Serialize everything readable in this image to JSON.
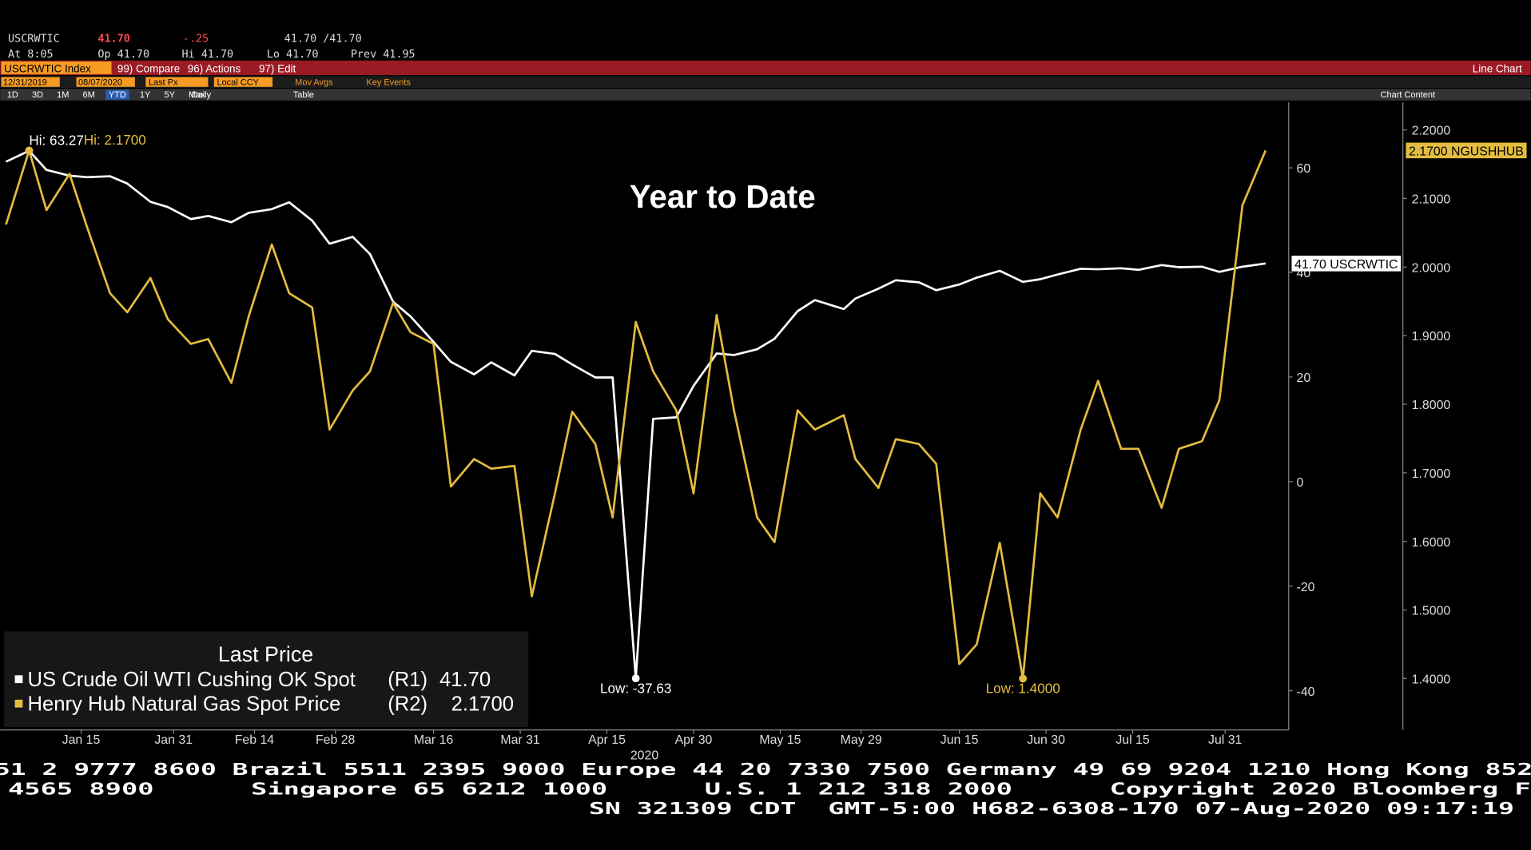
{
  "quote": {
    "ticker": "USCRWTIC",
    "last": "41.70",
    "change": "-.25",
    "bid_ask": "41.70 /41.70",
    "time": "At 8:05",
    "open": "Op 41.70",
    "high": "Hi 41.70",
    "low": "Lo 41.70",
    "prev": "Prev 41.95"
  },
  "toolbar": {
    "security": "USCRWTIC Index",
    "compare": "99) Compare",
    "actions": "96) Actions",
    "edit": "97) Edit",
    "view": "Line Chart",
    "start_date": "12/31/2019",
    "end_date": "08/07/2020",
    "field": "Last Px",
    "currency": "Local CCY",
    "mov_avgs": "Mov Avgs",
    "key_events": "Key Events",
    "ranges": [
      "1D",
      "3D",
      "1M",
      "6M",
      "YTD",
      "1Y",
      "5Y",
      "Max"
    ],
    "frequency": "Daily",
    "table": "Table",
    "chart_content": "Chart Content"
  },
  "chart_data": {
    "type": "line",
    "title": "Year to Date",
    "xlabel": "2020",
    "legend_title": "Last Price",
    "x": [
      "2020-01-02",
      "2020-01-06",
      "2020-01-09",
      "2020-01-13",
      "2020-01-16",
      "2020-01-20",
      "2020-01-23",
      "2020-01-27",
      "2020-01-30",
      "2020-02-03",
      "2020-02-06",
      "2020-02-10",
      "2020-02-13",
      "2020-02-17",
      "2020-02-20",
      "2020-02-24",
      "2020-02-27",
      "2020-03-02",
      "2020-03-05",
      "2020-03-09",
      "2020-03-12",
      "2020-03-16",
      "2020-03-19",
      "2020-03-23",
      "2020-03-26",
      "2020-03-30",
      "2020-04-02",
      "2020-04-06",
      "2020-04-09",
      "2020-04-13",
      "2020-04-16",
      "2020-04-20",
      "2020-04-23",
      "2020-04-27",
      "2020-04-30",
      "2020-05-04",
      "2020-05-07",
      "2020-05-11",
      "2020-05-14",
      "2020-05-18",
      "2020-05-21",
      "2020-05-26",
      "2020-05-28",
      "2020-06-01",
      "2020-06-04",
      "2020-06-08",
      "2020-06-11",
      "2020-06-15",
      "2020-06-18",
      "2020-06-22",
      "2020-06-26",
      "2020-06-29",
      "2020-07-02",
      "2020-07-06",
      "2020-07-09",
      "2020-07-13",
      "2020-07-16",
      "2020-07-20",
      "2020-07-23",
      "2020-07-27",
      "2020-07-30",
      "2020-08-03",
      "2020-08-07"
    ],
    "series": [
      {
        "name": "US Crude Oil WTI Cushing OK Spot",
        "axis_label": "(R1)",
        "last_value": "41.70",
        "color": "#ffffff",
        "high_label": "Hi: 63.27",
        "low_label": "Low: -37.63",
        "last_label": "41.70 USCRWTIC",
        "values": [
          61.18,
          63.27,
          59.6,
          58.5,
          58.2,
          58.4,
          57.0,
          53.5,
          52.5,
          50.2,
          50.8,
          49.6,
          51.4,
          52.1,
          53.4,
          49.9,
          45.5,
          46.8,
          43.5,
          34.4,
          31.6,
          26.7,
          22.9,
          20.5,
          22.8,
          20.3,
          25.0,
          24.4,
          22.4,
          19.9,
          19.9,
          -37.63,
          12.0,
          12.3,
          18.3,
          24.5,
          24.2,
          25.3,
          27.3,
          32.6,
          34.7,
          33.0,
          35.0,
          36.9,
          38.5,
          38.1,
          36.6,
          37.7,
          39.0,
          40.3,
          38.2,
          38.7,
          39.6,
          40.7,
          40.6,
          40.8,
          40.5,
          41.4,
          41.0,
          41.1,
          40.1,
          41.1,
          41.7
        ]
      },
      {
        "name": "Henry Hub Natural Gas Spot Price",
        "axis_label": "(R2)",
        "last_value": "2.1700",
        "color": "#e3bd3f",
        "axis": "y2",
        "high_label": "Hi: 2.1700",
        "low_label": "Low: 1.4000",
        "last_label": "2.1700 NGUSHHUB",
        "values": [
          2.062,
          2.17,
          2.083,
          2.136,
          2.059,
          1.962,
          1.934,
          1.984,
          1.924,
          1.888,
          1.895,
          1.831,
          1.928,
          2.033,
          1.962,
          1.941,
          1.763,
          1.82,
          1.848,
          1.948,
          1.905,
          1.888,
          1.68,
          1.72,
          1.706,
          1.71,
          1.52,
          1.67,
          1.789,
          1.742,
          1.635,
          1.92,
          1.848,
          1.791,
          1.67,
          1.93,
          1.791,
          1.635,
          1.599,
          1.791,
          1.763,
          1.784,
          1.72,
          1.678,
          1.749,
          1.742,
          1.713,
          1.421,
          1.45,
          1.598,
          1.4,
          1.67,
          1.635,
          1.763,
          1.834,
          1.735,
          1.735,
          1.649,
          1.735,
          1.746,
          1.806,
          2.09,
          2.17
        ]
      }
    ],
    "xlim": [
      "2020-01-01",
      "2020-08-11"
    ],
    "xticks": [
      {
        "value": "2020-01-15",
        "label": "Jan 15"
      },
      {
        "value": "2020-01-31",
        "label": "Jan 31"
      },
      {
        "value": "2020-02-14",
        "label": "Feb 14"
      },
      {
        "value": "2020-02-28",
        "label": "Feb 28"
      },
      {
        "value": "2020-03-16",
        "label": "Mar 16"
      },
      {
        "value": "2020-03-31",
        "label": "Mar 31"
      },
      {
        "value": "2020-04-15",
        "label": "Apr 15"
      },
      {
        "value": "2020-04-30",
        "label": "Apr 30"
      },
      {
        "value": "2020-05-15",
        "label": "May 15"
      },
      {
        "value": "2020-05-29",
        "label": "May 29"
      },
      {
        "value": "2020-06-15",
        "label": "Jun 15"
      },
      {
        "value": "2020-06-30",
        "label": "Jun 30"
      },
      {
        "value": "2020-07-15",
        "label": "Jul 15"
      },
      {
        "value": "2020-07-31",
        "label": "Jul 31"
      }
    ],
    "ylim": [
      -47.5,
      72.5
    ],
    "yticks": [
      -40,
      -20,
      0,
      20,
      40,
      60
    ],
    "y2lim": [
      1.325,
      2.24
    ],
    "y2ticks": [
      {
        "value": 1.4,
        "label": "1.4000"
      },
      {
        "value": 1.5,
        "label": "1.5000"
      },
      {
        "value": 1.6,
        "label": "1.6000"
      },
      {
        "value": 1.7,
        "label": "1.7000"
      },
      {
        "value": 1.8,
        "label": "1.8000"
      },
      {
        "value": 1.9,
        "label": "1.9000"
      },
      {
        "value": 2.0,
        "label": "2.0000"
      },
      {
        "value": 2.1,
        "label": "2.1000"
      },
      {
        "value": 2.2,
        "label": "2.2000"
      }
    ],
    "grid": false
  },
  "footer": {
    "lines": [
      "51 2 9777 8600 Brazil 5511 2395 9000 Europe 44 20 7330 7500 Germany 49 69 9204 1210 Hong Kong 852",
      "4565 8900      Singapore 65 6212 1000      U.S. 1 212 318 2000      Copyright 2020 Bloomberg F",
      "SN 321309 CDT  GMT-5:00 H682-6308-170 07-Aug-2020 09:17:19"
    ]
  }
}
